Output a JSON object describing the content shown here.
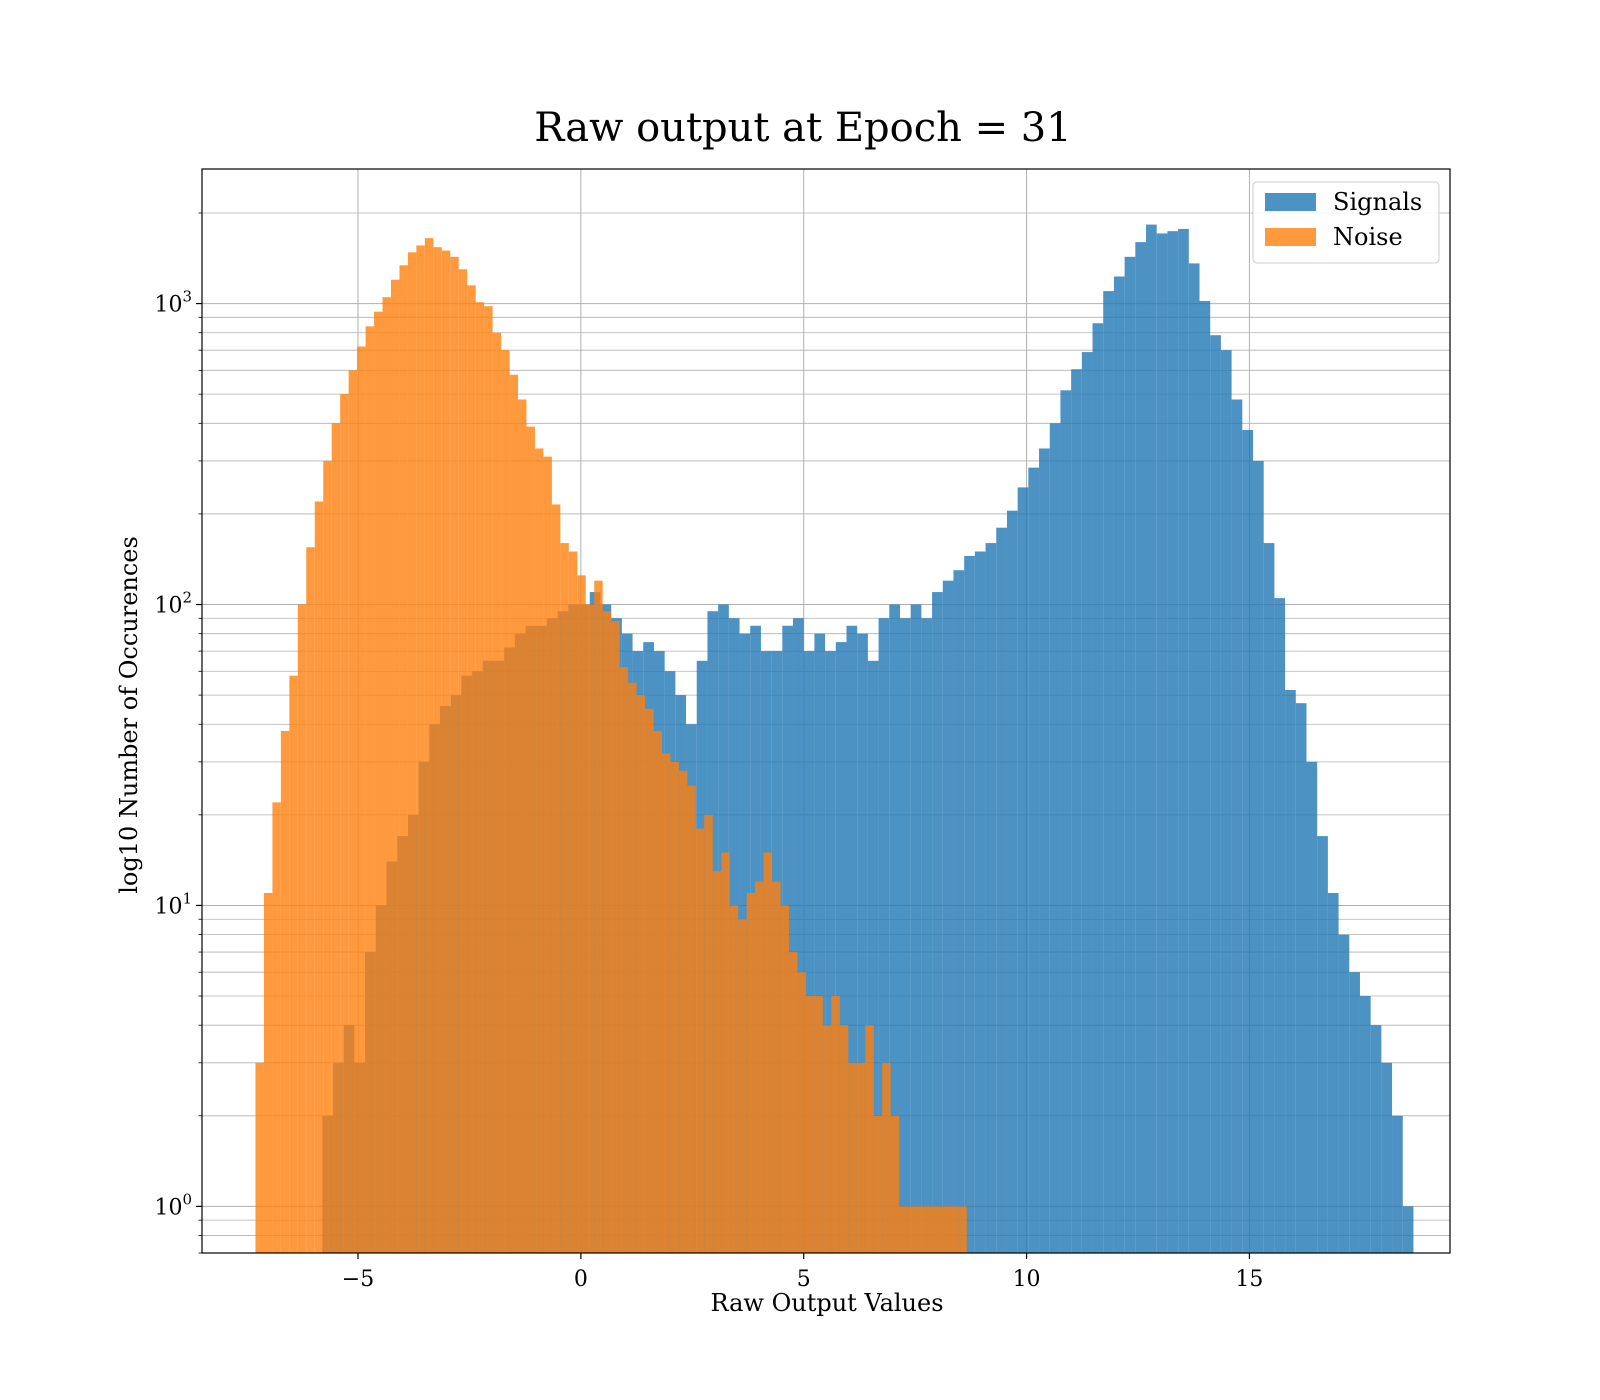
{
  "chart_data": {
    "type": "bar",
    "title": "Raw output at Epoch = 31",
    "xlabel": "Raw Output Values",
    "ylabel": "log10 Number of Occurences",
    "xlim": [
      -8.5,
      19.5
    ],
    "ylim": [
      0.7,
      2800
    ],
    "y_scale": "log",
    "grid": true,
    "legend_position": "top-right",
    "x_ticks": [
      -5,
      0,
      5,
      10,
      15
    ],
    "x_tick_labels": [
      "−5",
      "0",
      "5",
      "10",
      "15"
    ],
    "y_ticks": [
      {
        "value": 1,
        "base": "10",
        "exp": "0"
      },
      {
        "value": 10,
        "base": "10",
        "exp": "1"
      },
      {
        "value": 100,
        "base": "10",
        "exp": "2"
      },
      {
        "value": 1000,
        "base": "10",
        "exp": "3"
      }
    ],
    "colors": {
      "Signals": "#1f77b4",
      "Noise": "#ff7f0e"
    },
    "bar_alpha": 0.8,
    "series": [
      {
        "name": "Signals",
        "bin_start": -5.8,
        "bin_width": 0.24,
        "values": [
          2,
          3,
          4,
          3,
          7,
          10,
          14,
          17,
          20,
          30,
          40,
          46,
          50,
          58,
          60,
          65,
          65,
          72,
          80,
          85,
          85,
          90,
          95,
          100,
          100,
          110,
          100,
          90,
          80,
          70,
          75,
          70,
          60,
          50,
          40,
          65,
          95,
          100,
          90,
          80,
          85,
          70,
          70,
          85,
          90,
          70,
          80,
          70,
          75,
          85,
          80,
          65,
          90,
          100,
          90,
          100,
          90,
          110,
          120,
          130,
          145,
          150,
          160,
          180,
          205,
          245,
          285,
          330,
          400,
          515,
          605,
          690,
          860,
          1100,
          1230,
          1430,
          1600,
          1830,
          1710,
          1740,
          1770,
          1360,
          1020,
          785,
          700,
          480,
          380,
          300,
          160,
          105,
          52,
          47,
          30,
          17,
          11,
          8,
          6,
          5,
          4,
          3,
          2,
          1
        ]
      },
      {
        "name": "Noise",
        "bin_start": -7.3,
        "bin_width": 0.19,
        "values": [
          3,
          11,
          22,
          38,
          58,
          100,
          155,
          220,
          300,
          400,
          500,
          600,
          720,
          840,
          940,
          1050,
          1200,
          1340,
          1480,
          1560,
          1650,
          1540,
          1500,
          1430,
          1300,
          1150,
          1010,
          980,
          800,
          700,
          580,
          480,
          390,
          330,
          310,
          215,
          160,
          150,
          125,
          100,
          120,
          95,
          88,
          62,
          55,
          50,
          45,
          38,
          32,
          30,
          28,
          25,
          18,
          20,
          13,
          15,
          10,
          9,
          11,
          12,
          15,
          12,
          10,
          7,
          6,
          5,
          5,
          4,
          5,
          4,
          3,
          3,
          4,
          2,
          3,
          2,
          1,
          1,
          1,
          1,
          1,
          1,
          1,
          1
        ]
      }
    ]
  }
}
